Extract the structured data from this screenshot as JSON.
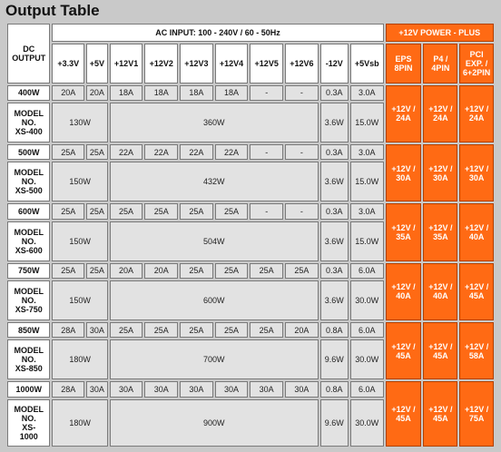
{
  "title": "Output Table",
  "header": {
    "dc_output": "DC\nOUTPUT",
    "ac_input": "AC INPUT: 100 - 240V / 60 - 50Hz",
    "plus": "+12V POWER - PLUS",
    "columns": [
      "+3.3V",
      "+5V",
      "+12V1",
      "+12V2",
      "+12V3",
      "+12V4",
      "+12V5",
      "+12V6",
      "-12V",
      "+5Vsb"
    ],
    "plus_columns": [
      "EPS\n8PIN",
      "P4 /\n4PIN",
      "PCI\nEXP. /\n6+2PIN"
    ]
  },
  "models": [
    {
      "watt": "400W",
      "amps": [
        "20A",
        "20A",
        "18A",
        "18A",
        "18A",
        "18A",
        "-",
        "-",
        "0.3A",
        "3.0A"
      ],
      "name": "MODEL\nNO.\nXS-400",
      "w_33_5": "130W",
      "w_12": "360W",
      "w_m12": "3.6W",
      "w_5vsb": "15.0W",
      "plus": [
        "+12V /\n24A",
        "+12V /\n24A",
        "+12V /\n24A"
      ]
    },
    {
      "watt": "500W",
      "amps": [
        "25A",
        "25A",
        "22A",
        "22A",
        "22A",
        "22A",
        "-",
        "-",
        "0.3A",
        "3.0A"
      ],
      "name": "MODEL\nNO.\nXS-500",
      "w_33_5": "150W",
      "w_12": "432W",
      "w_m12": "3.6W",
      "w_5vsb": "15.0W",
      "plus": [
        "+12V /\n30A",
        "+12V /\n30A",
        "+12V /\n30A"
      ]
    },
    {
      "watt": "600W",
      "amps": [
        "25A",
        "25A",
        "25A",
        "25A",
        "25A",
        "25A",
        "-",
        "-",
        "0.3A",
        "3.0A"
      ],
      "name": "MODEL\nNO.\nXS-600",
      "w_33_5": "150W",
      "w_12": "504W",
      "w_m12": "3.6W",
      "w_5vsb": "15.0W",
      "plus": [
        "+12V /\n35A",
        "+12V /\n35A",
        "+12V /\n40A"
      ]
    },
    {
      "watt": "750W",
      "amps": [
        "25A",
        "25A",
        "20A",
        "20A",
        "25A",
        "25A",
        "25A",
        "25A",
        "0.3A",
        "6.0A"
      ],
      "name": "MODEL\nNO.\nXS-750",
      "w_33_5": "150W",
      "w_12": "600W",
      "w_m12": "3.6W",
      "w_5vsb": "30.0W",
      "plus": [
        "+12V /\n40A",
        "+12V /\n40A",
        "+12V /\n45A"
      ]
    },
    {
      "watt": "850W",
      "amps": [
        "28A",
        "30A",
        "25A",
        "25A",
        "25A",
        "25A",
        "25A",
        "20A",
        "0.8A",
        "6.0A"
      ],
      "name": "MODEL\nNO.\nXS-850",
      "w_33_5": "180W",
      "w_12": "700W",
      "w_m12": "9.6W",
      "w_5vsb": "30.0W",
      "plus": [
        "+12V /\n45A",
        "+12V /\n45A",
        "+12V /\n58A"
      ]
    },
    {
      "watt": "1000W",
      "amps": [
        "28A",
        "30A",
        "30A",
        "30A",
        "30A",
        "30A",
        "30A",
        "30A",
        "0.8A",
        "6.0A"
      ],
      "name": "MODEL\nNO.\nXS-\n1000",
      "w_33_5": "180W",
      "w_12": "900W",
      "w_m12": "9.6W",
      "w_5vsb": "30.0W",
      "plus": [
        "+12V /\n45A",
        "+12V /\n45A",
        "+12V /\n75A"
      ]
    }
  ]
}
